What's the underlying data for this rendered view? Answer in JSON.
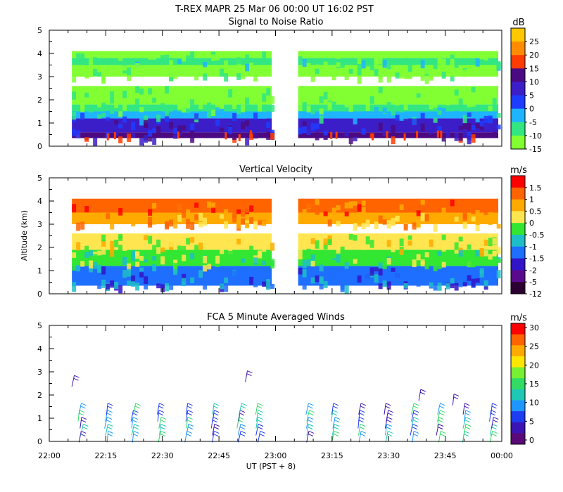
{
  "title": "T-REX   MAPR 25 Mar 06   00:00 UT   16:02   PST",
  "ylabel": "Altitude (km)",
  "xlabel": "UT  (PST + 8)",
  "x_ticks": [
    "22:00",
    "22:15",
    "22:30",
    "22:45",
    "23:00",
    "23:15",
    "23:30",
    "23:45",
    "00:00"
  ],
  "y_ticks": [
    "0",
    "1",
    "2",
    "3",
    "4",
    "5"
  ],
  "chart_data": [
    {
      "type": "heatmap",
      "title": "Signal to Noise Ratio",
      "unit": "dB",
      "xlim": [
        "22:00",
        "00:00"
      ],
      "ylim": [
        0,
        5
      ],
      "data_gap": [
        "22:59",
        "23:06"
      ],
      "colorbar": {
        "labels": [
          "25",
          "20",
          "15",
          "10",
          "5",
          "0",
          "-5",
          "-10",
          "-15"
        ],
        "colors": [
          "#ffc800",
          "#ff8c00",
          "#ff3c00",
          "#4b0a82",
          "#3c1ec8",
          "#1e3cff",
          "#1eb4ff",
          "#32e682",
          "#82ff32"
        ]
      },
      "layers": [
        {
          "bottom": 0.35,
          "top": 0.6,
          "color": "#4b0a82"
        },
        {
          "bottom": 0.6,
          "top": 1.2,
          "color": "#3c1ec8"
        },
        {
          "bottom": 1.2,
          "top": 1.5,
          "color": "#1eb4ff"
        },
        {
          "bottom": 1.5,
          "top": 1.8,
          "color": "#32e682"
        },
        {
          "bottom": 1.8,
          "top": 2.6,
          "color": "#82ff32"
        },
        {
          "bottom": 2.6,
          "top": 3.0,
          "color": "#ffffff"
        },
        {
          "bottom": 3.0,
          "top": 3.5,
          "color": "#82ff32"
        },
        {
          "bottom": 3.5,
          "top": 3.8,
          "color": "#32e682"
        },
        {
          "bottom": 3.8,
          "top": 4.1,
          "color": "#82ff32"
        }
      ]
    },
    {
      "type": "heatmap",
      "title": "Vertical Velocity",
      "unit": "m/s",
      "xlim": [
        "22:00",
        "00:00"
      ],
      "ylim": [
        0,
        5
      ],
      "data_gap": [
        "22:59",
        "23:06"
      ],
      "colorbar": {
        "labels": [
          "1.5",
          "1",
          "0.5",
          "0",
          "-0.5",
          "-1",
          "-1.5",
          "-2",
          "-5",
          "-12"
        ],
        "colors": [
          "#ff0000",
          "#ff6400",
          "#ffaa00",
          "#ffe650",
          "#32e632",
          "#1ebec8",
          "#1e6eff",
          "#3214c8",
          "#5a0a8c",
          "#2d0032"
        ]
      },
      "layers": [
        {
          "bottom": 0.35,
          "top": 1.2,
          "color": "#1e6eff"
        },
        {
          "bottom": 1.2,
          "top": 1.9,
          "color": "#32e632"
        },
        {
          "bottom": 1.9,
          "top": 2.6,
          "color": "#ffe650"
        },
        {
          "bottom": 3.0,
          "top": 3.5,
          "color": "#ffaa00"
        },
        {
          "bottom": 3.5,
          "top": 4.1,
          "color": "#ff6400"
        }
      ]
    },
    {
      "type": "scatter",
      "title": "FCA 5 Minute Averaged Winds",
      "unit": "m/s",
      "xlim": [
        "22:00",
        "00:00"
      ],
      "ylim": [
        0,
        5
      ],
      "colorbar": {
        "labels": [
          "30",
          "25",
          "20",
          "15",
          "10",
          "5",
          "0"
        ],
        "colors": [
          "#ff0000",
          "#ff6400",
          "#ffaa00",
          "#ffe600",
          "#78f032",
          "#32dc64",
          "#1ec8b4",
          "#1e96ff",
          "#1e3cf0",
          "#3c14b4",
          "#5a0a78"
        ]
      },
      "barb_times": [
        "22:08",
        "22:15",
        "22:22",
        "22:29",
        "22:36",
        "22:43",
        "22:50",
        "22:55",
        "23:08",
        "23:15",
        "23:22",
        "23:29",
        "23:36",
        "23:43",
        "23:50",
        "23:57"
      ],
      "barb_heights": [
        0.2,
        0.5,
        0.8,
        1.1,
        1.4
      ],
      "upper_barbs": [
        {
          "time": "22:06",
          "alt": 2.6
        },
        {
          "time": "22:52",
          "alt": 2.8
        },
        {
          "time": "23:38",
          "alt": 2.0
        },
        {
          "time": "23:47",
          "alt": 1.8
        }
      ]
    }
  ]
}
